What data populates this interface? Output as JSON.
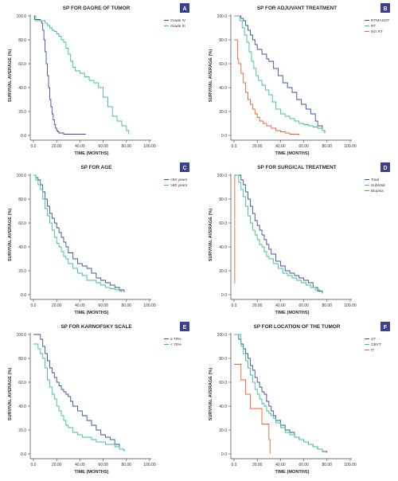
{
  "colors": {
    "dark_blue": "#3a4f9c",
    "teal": "#3bbf9d",
    "orange": "#f0612a",
    "purple_badge": "#3b3f8f",
    "axis": "#444444"
  },
  "chart_data": [
    {
      "type": "line",
      "badge": "A",
      "title": "SP FOR DAGRE OF TUMOR",
      "xlabel": "TIME (MONTHS)",
      "ylabel": "SURVIVAL AVERAGE (%)",
      "xlim": [
        0,
        100
      ],
      "ylim": [
        0,
        100
      ],
      "xticks": [
        "0.0",
        "20.00",
        "40.00",
        "60.00",
        "80.00",
        "100.00"
      ],
      "yticks": [
        "0.0",
        "20.0",
        "40.0",
        "60.0",
        "80.0",
        "100.0"
      ],
      "legend_position": "top-right",
      "series": [
        {
          "name": "Grade IV",
          "color": "#3a4f9c",
          "x": [
            0,
            1,
            2,
            4,
            6,
            7,
            8,
            9,
            10,
            11,
            12,
            13,
            14,
            15,
            16,
            17,
            18,
            19,
            20,
            21,
            22,
            24,
            26,
            30,
            45
          ],
          "y": [
            100,
            97,
            97,
            97,
            96,
            94,
            88,
            80,
            70,
            60,
            50,
            40,
            30,
            24,
            18,
            13,
            9,
            6,
            4,
            3,
            2,
            2,
            1,
            1,
            1
          ]
        },
        {
          "name": "Grade III",
          "color": "#3bbf9d",
          "x": [
            0,
            2,
            4,
            6,
            8,
            10,
            12,
            14,
            16,
            18,
            20,
            22,
            24,
            26,
            28,
            30,
            32,
            34,
            36,
            40,
            44,
            48,
            52,
            56,
            60,
            64,
            68,
            72,
            76,
            80,
            82
          ],
          "y": [
            100,
            96,
            96,
            96,
            96,
            94,
            92,
            90,
            88,
            87,
            85,
            83,
            80,
            78,
            73,
            68,
            62,
            57,
            54,
            52,
            49,
            46,
            44,
            40,
            32,
            24,
            16,
            12,
            8,
            4,
            1
          ]
        }
      ]
    },
    {
      "type": "line",
      "badge": "B",
      "title": "SP FOR ADJUVANT TREATMENT",
      "xlabel": "TIME (MONTHS)",
      "ylabel": "SURVIVAL AVERAGE (%)",
      "xlim": [
        0,
        100
      ],
      "ylim": [
        0,
        100
      ],
      "xticks": [
        "0.0",
        "20.00",
        "40.00",
        "60.00",
        "80.00",
        "100.00"
      ],
      "yticks": [
        "0.0",
        "20.0",
        "40.0",
        "60.0",
        "80.0",
        "100.0"
      ],
      "legend_position": "top-right",
      "series": [
        {
          "name": "RTMASOT",
          "color": "#3a4f9c",
          "x": [
            0,
            4,
            6,
            8,
            10,
            12,
            14,
            16,
            18,
            20,
            24,
            28,
            30,
            34,
            38,
            42,
            46,
            50,
            54,
            58,
            62,
            66,
            70,
            72,
            76,
            78
          ],
          "y": [
            100,
            100,
            98,
            96,
            92,
            88,
            84,
            80,
            76,
            72,
            68,
            64,
            62,
            56,
            50,
            44,
            40,
            36,
            30,
            26,
            22,
            18,
            12,
            8,
            4,
            2
          ]
        },
        {
          "name": "RT",
          "color": "#3bbf9d",
          "x": [
            0,
            3,
            5,
            7,
            9,
            11,
            13,
            15,
            17,
            19,
            21,
            24,
            27,
            30,
            33,
            36,
            40,
            44,
            48,
            52,
            56,
            60,
            64,
            68,
            72,
            76,
            78
          ],
          "y": [
            100,
            100,
            96,
            90,
            84,
            78,
            70,
            62,
            56,
            50,
            46,
            42,
            38,
            34,
            28,
            22,
            18,
            16,
            14,
            12,
            10,
            9,
            8,
            7,
            6,
            4,
            3
          ]
        },
        {
          "name": "NO RT",
          "color": "#f0612a",
          "x": [
            0,
            2,
            3,
            4,
            6,
            8,
            10,
            12,
            14,
            16,
            18,
            20,
            22,
            25,
            28,
            32,
            36,
            40,
            44,
            48,
            52,
            56
          ],
          "y": [
            80,
            80,
            64,
            60,
            52,
            44,
            36,
            30,
            26,
            22,
            18,
            15,
            12,
            10,
            8,
            6,
            4,
            3,
            2,
            1,
            1,
            0
          ]
        }
      ]
    },
    {
      "type": "line",
      "badge": "C",
      "title": "SP FOR AGE",
      "xlabel": "TIME (MONTHS)",
      "ylabel": "SURVIVAL AVERAGE (%)",
      "xlim": [
        0,
        100
      ],
      "ylim": [
        0,
        100
      ],
      "xticks": [
        "0.0",
        "20.00",
        "40.00",
        "60.00",
        "80.00",
        "100.00"
      ],
      "yticks": [
        "0.0",
        "20.0",
        "40.0",
        "60.0",
        "80.0",
        "100.0"
      ],
      "legend_position": "top-right",
      "series": [
        {
          "name": "<60 years",
          "color": "#3a4f9c",
          "x": [
            0,
            2,
            4,
            6,
            8,
            10,
            12,
            14,
            16,
            18,
            20,
            22,
            24,
            26,
            28,
            30,
            34,
            38,
            42,
            46,
            50,
            54,
            58,
            62,
            66,
            70,
            74,
            78
          ],
          "y": [
            100,
            98,
            96,
            92,
            86,
            80,
            74,
            68,
            64,
            60,
            56,
            52,
            48,
            44,
            40,
            35,
            30,
            26,
            24,
            22,
            18,
            14,
            12,
            10,
            8,
            6,
            4,
            2
          ]
        },
        {
          "name": ">60 years",
          "color": "#3bbf9d",
          "x": [
            0,
            2,
            4,
            6,
            8,
            10,
            12,
            14,
            16,
            18,
            20,
            22,
            24,
            26,
            28,
            30,
            34,
            38,
            42,
            46,
            50,
            54,
            58,
            62,
            66,
            70,
            74,
            76
          ],
          "y": [
            100,
            96,
            92,
            88,
            80,
            72,
            66,
            60,
            54,
            48,
            43,
            40,
            36,
            32,
            30,
            26,
            22,
            18,
            16,
            12,
            12,
            10,
            8,
            6,
            5,
            4,
            3,
            2
          ]
        }
      ]
    },
    {
      "type": "line",
      "badge": "D",
      "title": "SP FOR SURGICAL TREATMENT",
      "xlabel": "TIME (MONTHS)",
      "ylabel": "SURVIVAL AVERAGE (%)",
      "xlim": [
        0,
        100
      ],
      "ylim": [
        0,
        100
      ],
      "xticks": [
        "0.0",
        "20.00",
        "40.00",
        "60.00",
        "80.00",
        "100.00"
      ],
      "yticks": [
        "0.0",
        "20.0",
        "40.0",
        "60.0",
        "80.0",
        "100.0"
      ],
      "legend_position": "top-right",
      "series": [
        {
          "name": "Total",
          "color": "#3a4f9c",
          "x": [
            0,
            4,
            6,
            8,
            10,
            12,
            14,
            16,
            18,
            20,
            22,
            24,
            26,
            28,
            30,
            32,
            36,
            40,
            44,
            48,
            52,
            56,
            60,
            64,
            68,
            72,
            76
          ],
          "y": [
            100,
            100,
            96,
            92,
            86,
            80,
            74,
            68,
            62,
            58,
            54,
            50,
            46,
            42,
            38,
            34,
            28,
            24,
            20,
            18,
            16,
            14,
            12,
            10,
            6,
            3,
            1
          ]
        },
        {
          "name": "Subtotal",
          "color": "#3bbf9d",
          "x": [
            0,
            2,
            4,
            6,
            8,
            10,
            12,
            14,
            16,
            18,
            20,
            22,
            24,
            26,
            28,
            30,
            34,
            38,
            42,
            46,
            50,
            54,
            58,
            62,
            66,
            70,
            74
          ],
          "y": [
            100,
            100,
            94,
            88,
            82,
            74,
            66,
            60,
            54,
            50,
            46,
            42,
            40,
            36,
            32,
            30,
            26,
            22,
            18,
            16,
            14,
            12,
            10,
            8,
            6,
            4,
            2
          ]
        },
        {
          "name": "Biopsia",
          "color": "#f0612a",
          "x": [
            0,
            0.3,
            0.6,
            0.6
          ],
          "y": [
            10,
            10,
            10,
            100
          ]
        }
      ]
    },
    {
      "type": "line",
      "badge": "E",
      "title": "SP FOR KARNOFSKY SCALE",
      "xlabel": "TIME (MONTHS)",
      "ylabel": "SURVIVAL AVERAGE (%)",
      "xlim": [
        0,
        100
      ],
      "ylim": [
        0,
        100
      ],
      "xticks": [
        "0.0",
        "20.00",
        "40.00",
        "60.00",
        "80.00",
        "100.00"
      ],
      "yticks": [
        "0.0",
        "20.0",
        "40.0",
        "60.0",
        "80.0",
        "100.0"
      ],
      "legend_position": "top-right",
      "series": [
        {
          "name": "≥ 70%",
          "color": "#3a4f9c",
          "x": [
            0,
            4,
            6,
            8,
            10,
            12,
            14,
            16,
            18,
            20,
            22,
            24,
            26,
            28,
            30,
            32,
            34,
            38,
            42,
            46,
            50,
            54,
            58,
            62,
            66,
            70,
            74,
            78
          ],
          "y": [
            100,
            100,
            96,
            90,
            84,
            78,
            72,
            68,
            64,
            60,
            57,
            54,
            52,
            50,
            48,
            44,
            40,
            36,
            32,
            28,
            24,
            20,
            16,
            14,
            12,
            8,
            4,
            2
          ]
        },
        {
          "name": "< 70%",
          "color": "#3bbf9d",
          "x": [
            0,
            2,
            4,
            6,
            8,
            10,
            12,
            14,
            16,
            18,
            20,
            22,
            24,
            26,
            28,
            30,
            34,
            38,
            42,
            46,
            50,
            54,
            58,
            62,
            66,
            70,
            74,
            78
          ],
          "y": [
            92,
            92,
            88,
            84,
            80,
            72,
            62,
            56,
            50,
            46,
            40,
            36,
            32,
            28,
            24,
            22,
            18,
            16,
            14,
            14,
            12,
            10,
            10,
            8,
            8,
            6,
            4,
            2
          ]
        }
      ]
    },
    {
      "type": "line",
      "badge": "F",
      "title": "SP FOR LOCATION OF THE TUMOR",
      "xlabel": "TIME (MONTHS)",
      "ylabel": "SURVIVAL AVERAGE (%)",
      "xlim": [
        0,
        100
      ],
      "ylim": [
        0,
        100
      ],
      "xticks": [
        "0.0",
        "20.00",
        "40.00",
        "60.00",
        "80.00",
        "100.00"
      ],
      "yticks": [
        "0.0",
        "20.0",
        "40.0",
        "60.0",
        "80.0",
        "100.0"
      ],
      "legend_position": "top-right",
      "series": [
        {
          "name": "ST",
          "color": "#3a4f9c",
          "x": [
            0,
            2,
            4,
            6,
            8,
            10,
            12,
            14,
            16,
            18,
            20,
            22,
            24,
            26,
            28,
            30,
            32,
            34,
            36,
            40,
            44,
            48,
            52,
            56,
            60,
            64,
            68,
            72,
            76,
            80
          ],
          "y": [
            100,
            100,
            96,
            92,
            88,
            84,
            80,
            74,
            70,
            64,
            60,
            56,
            52,
            50,
            44,
            40,
            36,
            32,
            28,
            24,
            20,
            18,
            14,
            12,
            10,
            8,
            6,
            4,
            2,
            1
          ]
        },
        {
          "name": "GBYT",
          "color": "#3bbf9d",
          "x": [
            0,
            4,
            6,
            8,
            10,
            12,
            14,
            16,
            18,
            20,
            22,
            24,
            26,
            28,
            30,
            32,
            34,
            36,
            40,
            44,
            48,
            52,
            56,
            60,
            64,
            68,
            72,
            76
          ],
          "y": [
            100,
            100,
            90,
            84,
            78,
            72,
            66,
            60,
            54,
            50,
            46,
            42,
            40,
            36,
            34,
            32,
            30,
            26,
            22,
            18,
            16,
            14,
            12,
            10,
            8,
            6,
            4,
            2
          ]
        },
        {
          "name": "IT",
          "color": "#f0612a",
          "x": [
            0,
            4,
            6,
            8,
            10,
            12,
            14,
            16,
            18,
            20,
            22,
            24,
            26,
            28,
            30,
            31
          ],
          "y": [
            75,
            75,
            62,
            62,
            50,
            50,
            38,
            38,
            38,
            38,
            38,
            25,
            25,
            25,
            12,
            0
          ]
        }
      ]
    }
  ]
}
